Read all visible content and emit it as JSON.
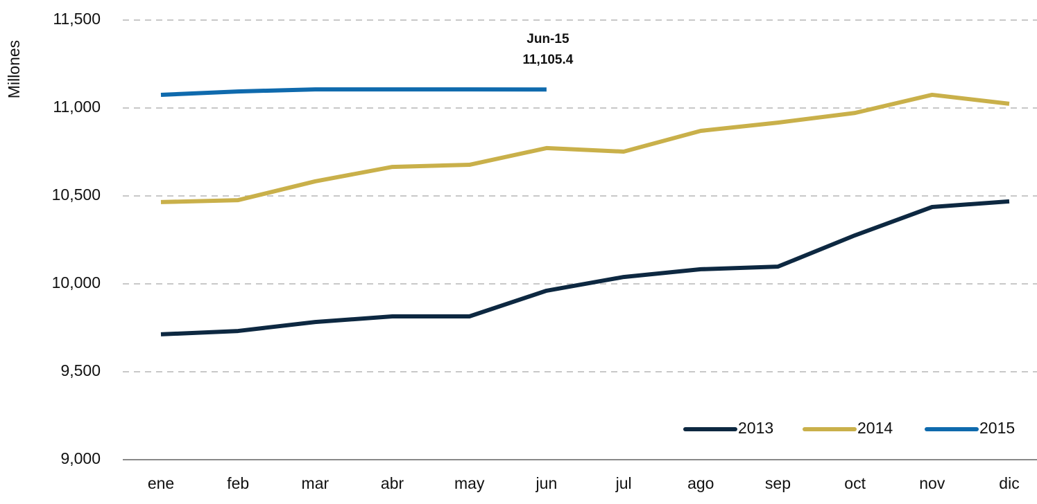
{
  "chart_data": {
    "type": "line",
    "y_label": "Millones",
    "categories": [
      "ene",
      "feb",
      "mar",
      "abr",
      "may",
      "jun",
      "jul",
      "ago",
      "sep",
      "oct",
      "nov",
      "dic"
    ],
    "series": [
      {
        "name": "2013",
        "color": "#0d2841",
        "values": [
          9713,
          9732,
          9783,
          9815,
          9815,
          9961,
          10039,
          10083,
          10098,
          10276,
          10437,
          10469
        ]
      },
      {
        "name": "2014",
        "color": "#c9b04a",
        "values": [
          10465,
          10476,
          10583,
          10665,
          10677,
          10772,
          10752,
          10870,
          10917,
          10972,
          11075,
          11024
        ]
      },
      {
        "name": "2015",
        "color": "#0f6aad",
        "values": [
          11075,
          11094,
          11106,
          11106,
          11106,
          11105.4,
          null,
          null,
          null,
          null,
          null,
          null
        ]
      }
    ],
    "annotations": [
      {
        "label": "Jun-15",
        "value": 11105.4,
        "value_label": "11,105.4"
      }
    ],
    "ylim": [
      9000,
      11500
    ],
    "yticks": [
      {
        "value": 9000,
        "label": "9,000"
      },
      {
        "value": 9500,
        "label": "9,500"
      },
      {
        "value": 10000,
        "label": "10,000"
      },
      {
        "value": 10500,
        "label": "10,500"
      },
      {
        "value": 11000,
        "label": "11,000"
      },
      {
        "value": 11500,
        "label": "11,500"
      }
    ],
    "grid": true,
    "legend": "bottom-right"
  }
}
